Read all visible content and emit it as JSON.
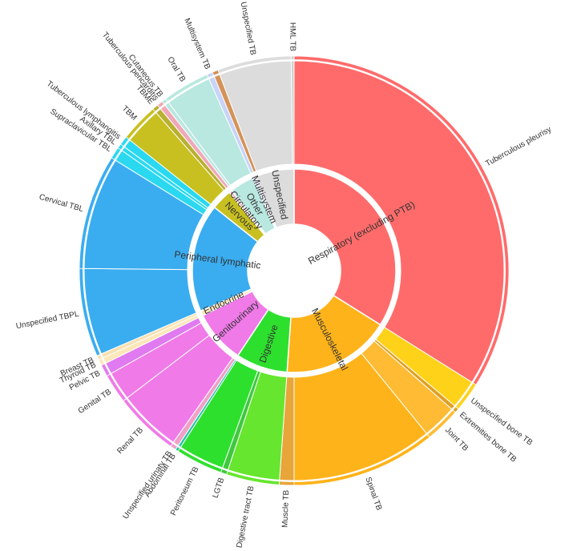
{
  "chart_data": {
    "type": "sunburst",
    "start_angle_deg": 0,
    "direction": "clockwise",
    "categories": [
      {
        "name": "Respiratory (excluding PTB)",
        "color": "#ff6b6b",
        "children": [
          {
            "name": "Tuberculous pleurisy",
            "value": 153,
            "color": "#ff6b6b"
          }
        ]
      },
      {
        "name": "Musculoskeletal",
        "color": "#ffb31a",
        "children": [
          {
            "name": "Unspecified bone TB",
            "value": 10,
            "color": "#ffd21a"
          },
          {
            "name": "Extremities bone TB",
            "value": 1.5,
            "color": "#e0a020"
          },
          {
            "name": "Joint TB",
            "value": 12,
            "color": "#ffbb33"
          },
          {
            "name": "Spinal TB",
            "value": 49,
            "color": "#ffb31a"
          },
          {
            "name": "Muscle TB",
            "value": 5,
            "color": "#e8a53a"
          }
        ]
      },
      {
        "name": "Digestive",
        "color": "#2ee02e",
        "children": [
          {
            "name": "Digestive tract TB",
            "value": 18,
            "color": "#66e62e"
          },
          {
            "name": "LGTB",
            "value": 2,
            "color": "#3ec93e"
          },
          {
            "name": "Peritoneum TB",
            "value": 16,
            "color": "#2ee02e"
          },
          {
            "name": "Abdominal TB",
            "value": 1,
            "color": "#20c8a0"
          }
        ]
      },
      {
        "name": "Genitourinary",
        "color": "#f07ae8",
        "children": [
          {
            "name": "Unspecified urinaty TB",
            "value": 2,
            "color": "#f0a0c8"
          },
          {
            "name": "Renal TB",
            "value": 22,
            "color": "#f07ae8"
          },
          {
            "name": "Genital TB",
            "value": 10,
            "color": "#f07ae8"
          },
          {
            "name": "Pelvic TB",
            "value": 4,
            "color": "#e07af0"
          }
        ]
      },
      {
        "name": "Endocrine",
        "color": "#fde7b8",
        "children": [
          {
            "name": "Thyroid TB",
            "value": 2,
            "color": "#fde7b8"
          },
          {
            "name": "Breast TB",
            "value": 1.5,
            "color": "#f8e0b0"
          }
        ]
      },
      {
        "name": "Peripheral lymphatic",
        "color": "#3aadf0",
        "children": [
          {
            "name": "Unspecified TBPL",
            "value": 30,
            "color": "#3aadf0"
          },
          {
            "name": "Cervical TBL",
            "value": 39,
            "color": "#3aadf0"
          },
          {
            "name": "Supraclavicular TBL",
            "value": 4,
            "color": "#2ad8f0"
          },
          {
            "name": "Axillary TBL",
            "value": 1.5,
            "color": "#2ad8f0"
          },
          {
            "name": "Tuberculous lymphangitis",
            "value": 3,
            "color": "#2ad8f0"
          }
        ]
      },
      {
        "name": "Nervous",
        "color": "#c8c020",
        "children": [
          {
            "name": "TBM",
            "value": 13,
            "color": "#c8c020"
          },
          {
            "name": "TBME",
            "value": 2,
            "color": "#b8b030"
          }
        ]
      },
      {
        "name": "Circulatory",
        "color": "#e8b0c0",
        "children": [
          {
            "name": "Tuberculous pericarditis",
            "value": 2,
            "color": "#f0a8b8"
          }
        ]
      },
      {
        "name": "Other",
        "color": "#b8e8e0",
        "children": [
          {
            "name": "Cutaneous TB",
            "value": 1.5,
            "color": "#b8e8e0"
          },
          {
            "name": "Oral TB",
            "value": 16,
            "color": "#b8e8e0"
          }
        ]
      },
      {
        "name": "Multisystem",
        "color": "#c8d4f8",
        "children": [
          {
            "name": "Multisystem TB",
            "value": 2,
            "color": "#c8d4f8"
          }
        ]
      },
      {
        "name": "Unspecified",
        "color": "#dcdcdc",
        "children": [
          {
            "name": "",
            "value": 2,
            "color": "#d4935a"
          },
          {
            "name": "Unspecified TB",
            "value": 25,
            "color": "#dcdcdc"
          },
          {
            "name": "HML TB",
            "value": 1,
            "color": "#d0d0d0"
          }
        ]
      }
    ]
  }
}
